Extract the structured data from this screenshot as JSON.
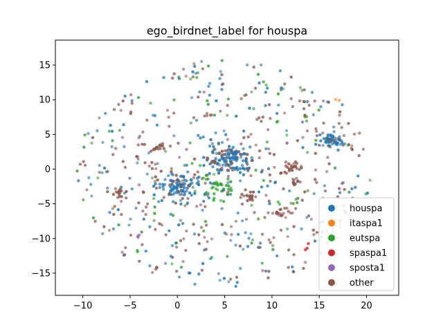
{
  "chart_data": {
    "type": "scatter",
    "title": "ego_birdnet_label for houspa",
    "xlabel": "",
    "ylabel": "",
    "xlim": [
      -12.9,
      23.4
    ],
    "ylim": [
      -18.2,
      18.6
    ],
    "xticks": [
      -10,
      -5,
      0,
      5,
      10,
      15,
      20
    ],
    "yticks": [
      -15,
      -10,
      -5,
      0,
      5,
      10,
      15
    ],
    "grid": false,
    "legend_position": "lower right",
    "series": [
      {
        "name": "houspa",
        "color": "#1f77b4"
      },
      {
        "name": "itaspa1",
        "color": "#ff7f0e"
      },
      {
        "name": "eutspa",
        "color": "#2ca02c"
      },
      {
        "name": "spaspa1",
        "color": "#d62728"
      },
      {
        "name": "sposta1",
        "color": "#9467bd"
      },
      {
        "name": "other",
        "color": "#8c564b"
      }
    ],
    "clusters": [
      {
        "series": "houspa",
        "center": [
          16.2,
          4.0
        ],
        "spread": 0.7,
        "n": 60
      },
      {
        "series": "houspa",
        "center": [
          5.6,
          1.2
        ],
        "spread": 1.3,
        "n": 140
      },
      {
        "series": "houspa",
        "center": [
          0.2,
          -2.6
        ],
        "spread": 1.2,
        "n": 110
      },
      {
        "series": "eutspa",
        "center": [
          4.3,
          -2.5
        ],
        "spread": 0.9,
        "n": 30
      },
      {
        "series": "other",
        "center": [
          12.0,
          0.3
        ],
        "spread": 0.5,
        "n": 25
      },
      {
        "series": "other",
        "center": [
          7.5,
          -3.8
        ],
        "spread": 0.5,
        "n": 20
      },
      {
        "series": "other",
        "center": [
          10.8,
          -6.2
        ],
        "spread": 0.5,
        "n": 18
      },
      {
        "series": "other",
        "center": [
          -2.0,
          3.0
        ],
        "spread": 0.4,
        "n": 14
      },
      {
        "series": "other",
        "center": [
          -6.0,
          -3.6
        ],
        "spread": 0.4,
        "n": 12
      },
      {
        "series": "other",
        "center": [
          12.6,
          -1.8
        ],
        "spread": 0.4,
        "n": 10
      },
      {
        "series": "sposta1",
        "center": [
          -4.2,
          -9.8
        ],
        "spread": 0.15,
        "n": 3
      },
      {
        "series": "spaspa1",
        "center": [
          13.5,
          -11.4
        ],
        "spread": 0.3,
        "n": 3
      },
      {
        "series": "itaspa1",
        "center": [
          17.2,
          9.9
        ],
        "spread": 0.2,
        "n": 2
      }
    ],
    "background": {
      "mix": [
        "houspa",
        "other",
        "eutspa"
      ],
      "center": [
        5.0,
        -0.5
      ],
      "radius": 16.5,
      "n": 560
    }
  }
}
